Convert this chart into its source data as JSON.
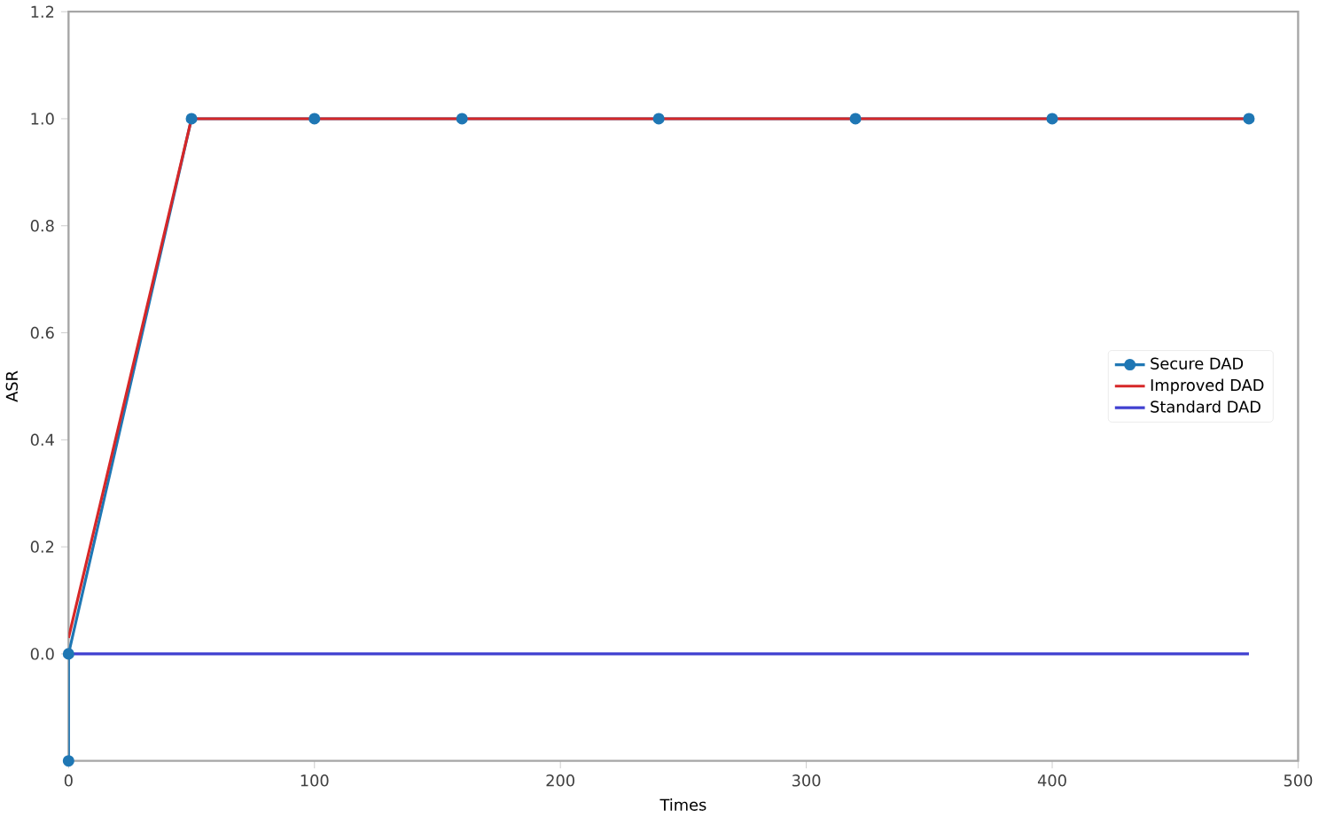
{
  "chart_data": {
    "type": "line",
    "xlabel": "Times",
    "ylabel": "ASR",
    "xlim": [
      0,
      500
    ],
    "xticks": [
      0,
      100,
      200,
      300,
      400,
      500
    ],
    "ylim": [
      -0.2,
      1.2
    ],
    "yticks": [
      {
        "value": 0,
        "label": "0.0"
      },
      0.2,
      0.4,
      0.6,
      0.8,
      {
        "value": 1,
        "label": "1.0"
      },
      1.2
    ],
    "legend": "right",
    "grid": false,
    "series": [
      {
        "name": "Secure DAD",
        "color": "#1f77b4",
        "marker": "circle",
        "x": [
          0,
          0,
          50,
          100,
          160,
          240,
          320,
          400,
          480
        ],
        "values": [
          -0.2,
          0,
          1,
          1,
          1,
          1,
          1,
          1,
          1
        ]
      },
      {
        "name": "Improved DAD",
        "color": "#d62728",
        "marker": "none",
        "x": [
          0,
          50,
          100,
          160,
          240,
          320,
          400,
          480
        ],
        "values": [
          0.03,
          1,
          1,
          1,
          1,
          1,
          1,
          1
        ]
      },
      {
        "name": "Standard DAD",
        "color": "#3f3fd0",
        "marker": "none",
        "x": [
          0,
          50,
          100,
          160,
          240,
          320,
          400,
          480
        ],
        "values": [
          0,
          0,
          0,
          0,
          0,
          0,
          0,
          0
        ]
      }
    ]
  }
}
